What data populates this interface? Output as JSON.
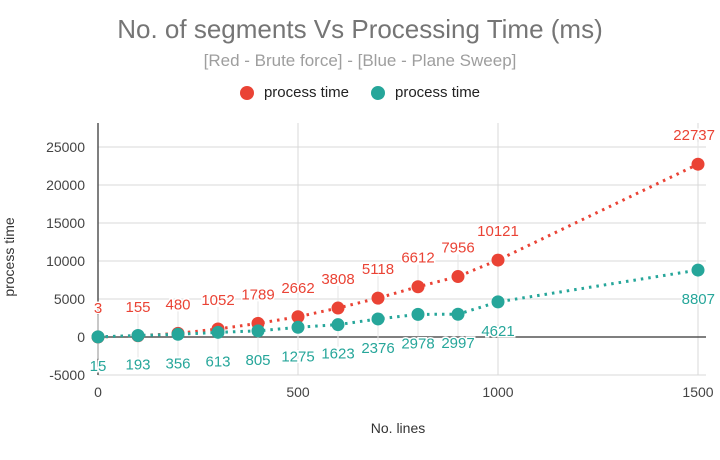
{
  "chart_data": {
    "type": "line",
    "title": "No. of segments Vs Processing Time (ms)",
    "subtitle": "[Red - Brute force] - [Blue - Plane Sweep]",
    "xlabel": "No. lines",
    "ylabel": "process time",
    "xlim": [
      0,
      1500
    ],
    "ylim": [
      -5000,
      27500
    ],
    "x_ticks": [
      "0",
      "500",
      "1000",
      "1500"
    ],
    "x_tick_values": [
      0,
      500,
      1000,
      1500
    ],
    "y_ticks": [
      "25000",
      "20000",
      "15000",
      "10000",
      "5000",
      "0",
      "-5000"
    ],
    "y_tick_values": [
      25000,
      20000,
      15000,
      10000,
      5000,
      0,
      -5000
    ],
    "grid": true,
    "legend_position": "top",
    "x": [
      0,
      100,
      200,
      300,
      400,
      500,
      600,
      700,
      800,
      900,
      1000,
      1500
    ],
    "series": [
      {
        "name": "process time",
        "color": "#ea4335",
        "values": [
          3,
          155,
          480,
          1052,
          1789,
          2662,
          3808,
          5118,
          6612,
          7956,
          10121,
          22737
        ],
        "labels": [
          "3",
          "155",
          "480",
          "1052",
          "1789",
          "2662",
          "3808",
          "5118",
          "6612",
          "7956",
          "10121",
          "22737"
        ],
        "label_side": "above"
      },
      {
        "name": "process time",
        "color": "#26a69a",
        "values": [
          15,
          193,
          356,
          613,
          805,
          1275,
          1623,
          2376,
          2978,
          2997,
          4621,
          8807
        ],
        "labels": [
          "15",
          "193",
          "356",
          "613",
          "805",
          "1275",
          "1623",
          "2376",
          "2978",
          "2997",
          "4621",
          "8807"
        ],
        "label_side": "below"
      }
    ]
  }
}
